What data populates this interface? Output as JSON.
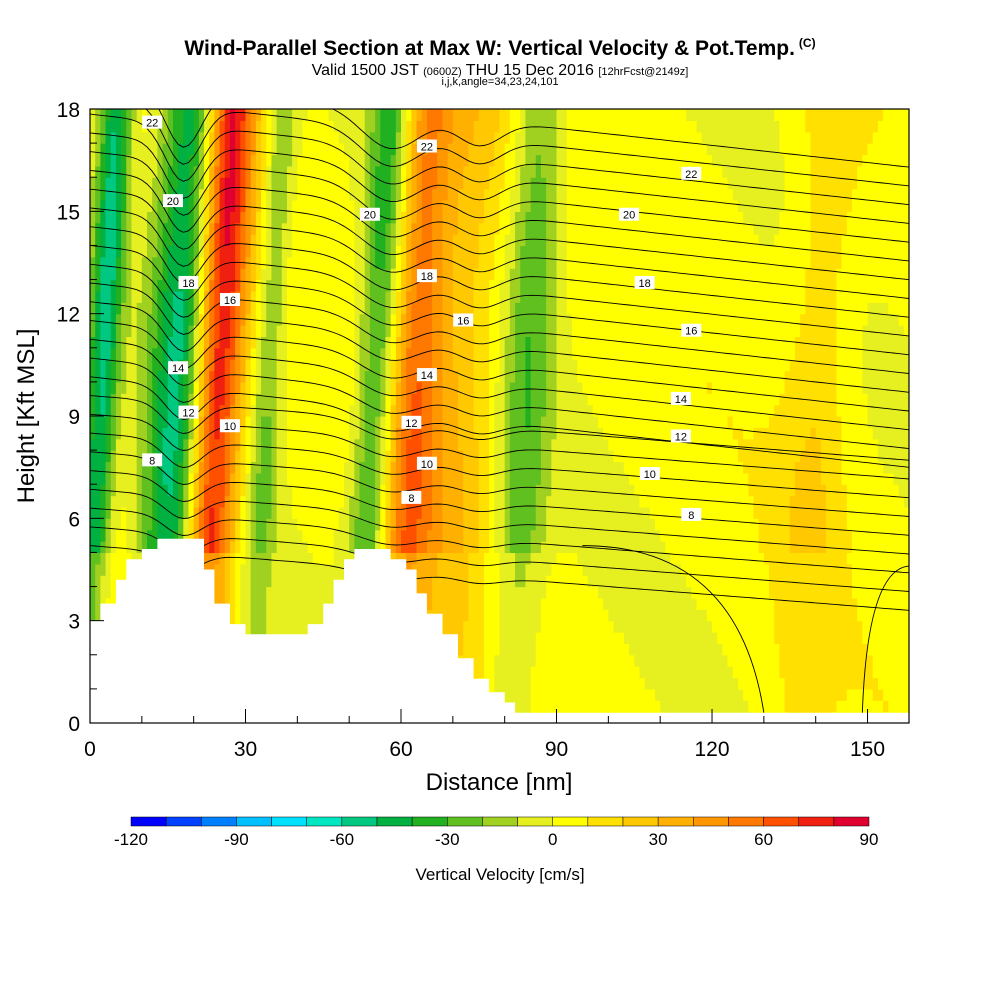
{
  "header": {
    "title": "Wind-Parallel Section at Max W: Vertical Velocity & Pot.Temp.",
    "title_units": "(C)",
    "valid_prefix": "Valid 1500 JST",
    "valid_utc": "(0600Z)",
    "valid_date": "THU 15 Dec 2016",
    "forecast": "[12hrFcst@2149z]",
    "indices": "i,j,k,angle=34,23,24,101"
  },
  "chart_data": {
    "type": "heatmap",
    "xlabel": "Distance [nm]",
    "ylabel": "Height [Kft MSL]",
    "xlim": [
      0,
      158
    ],
    "ylim": [
      0,
      18
    ],
    "x_ticks": [
      "0",
      "30",
      "60",
      "90",
      "120",
      "150"
    ],
    "y_ticks": [
      "0",
      "3",
      "6",
      "9",
      "12",
      "15",
      "18"
    ],
    "x_tick_values": [
      0,
      30,
      60,
      90,
      120,
      150
    ],
    "y_tick_values": [
      0,
      3,
      6,
      9,
      12,
      15,
      18
    ],
    "colorbar": {
      "label": "Vertical Velocity [cm/s]",
      "min": -120,
      "max": 90,
      "step": 10,
      "tick_labels": [
        "-120",
        "-90",
        "-60",
        "-30",
        "0",
        "30",
        "60",
        "90"
      ],
      "tick_values": [
        -120,
        -90,
        -60,
        -30,
        0,
        30,
        60,
        90
      ],
      "colors": [
        "#0000ff",
        "#0040ff",
        "#0080ff",
        "#00c0ff",
        "#00e0ff",
        "#00e6c0",
        "#00c880",
        "#00b040",
        "#20b020",
        "#60c020",
        "#a0d020",
        "#e6f020",
        "#ffff00",
        "#ffe000",
        "#ffc800",
        "#ffb000",
        "#ff9800",
        "#ff7800",
        "#ff5000",
        "#f02010",
        "#e00030",
        "#c00050",
        "#a00070",
        "#7a0090",
        "#5a0096"
      ]
    },
    "velocity_features": [
      {
        "x": 2,
        "width": 3,
        "value": -55
      },
      {
        "x": 17,
        "width": 6,
        "value": -60
      },
      {
        "x": 24,
        "width": 5,
        "value": 85
      },
      {
        "x": 34,
        "width": 3,
        "value": -25
      },
      {
        "x": 55,
        "width": 4,
        "value": -40
      },
      {
        "x": 62,
        "width": 5,
        "value": 45
      },
      {
        "x": 70,
        "width": 8,
        "value": 25
      },
      {
        "x": 84,
        "width": 5,
        "value": -30
      },
      {
        "x": 140,
        "width": 6,
        "value": 15
      }
    ],
    "terrain": [
      [
        0,
        3
      ],
      [
        2,
        3
      ],
      [
        2,
        3.5
      ],
      [
        5,
        3.5
      ],
      [
        5,
        4.2
      ],
      [
        7,
        4.2
      ],
      [
        7,
        4.8
      ],
      [
        10,
        4.8
      ],
      [
        10,
        5.1
      ],
      [
        13,
        5.1
      ],
      [
        13,
        5.4
      ],
      [
        22,
        5.4
      ],
      [
        22,
        4.5
      ],
      [
        24,
        4.5
      ],
      [
        24,
        3.5
      ],
      [
        27,
        3.5
      ],
      [
        27,
        2.9
      ],
      [
        30,
        2.9
      ],
      [
        30,
        2.6
      ],
      [
        42,
        2.6
      ],
      [
        42,
        2.9
      ],
      [
        45,
        2.9
      ],
      [
        45,
        3.5
      ],
      [
        47,
        3.5
      ],
      [
        47,
        4.2
      ],
      [
        49,
        4.2
      ],
      [
        49,
        4.8
      ],
      [
        51,
        4.8
      ],
      [
        51,
        5.1
      ],
      [
        58,
        5.1
      ],
      [
        58,
        4.8
      ],
      [
        61,
        4.8
      ],
      [
        61,
        4.5
      ],
      [
        63,
        4.5
      ],
      [
        63,
        3.8
      ],
      [
        65,
        3.8
      ],
      [
        65,
        3.2
      ],
      [
        68,
        3.2
      ],
      [
        68,
        2.6
      ],
      [
        71,
        2.6
      ],
      [
        71,
        1.9
      ],
      [
        74,
        1.9
      ],
      [
        74,
        1.3
      ],
      [
        77,
        1.3
      ],
      [
        77,
        0.9
      ],
      [
        80,
        0.9
      ],
      [
        80,
        0.6
      ],
      [
        82,
        0.6
      ],
      [
        82,
        0.3
      ],
      [
        158,
        0.3
      ],
      [
        158,
        0
      ]
    ],
    "theta_contours": [
      {
        "level": "8",
        "base": 7.7,
        "labels": [
          [
            12,
            7.7
          ],
          [
            62,
            6.6
          ],
          [
            116,
            6.1
          ]
        ]
      },
      {
        "level": "10",
        "base": 8.7,
        "labels": [
          [
            27,
            8.7
          ],
          [
            65,
            7.6
          ],
          [
            108,
            7.3
          ]
        ]
      },
      {
        "level": "12",
        "base": 9.1,
        "labels": [
          [
            19,
            9.1
          ],
          [
            62,
            8.8
          ],
          [
            114,
            8.4
          ]
        ]
      },
      {
        "level": "14",
        "base": 10.4,
        "labels": [
          [
            17,
            10.4
          ],
          [
            65,
            10.2
          ],
          [
            114,
            9.5
          ]
        ]
      },
      {
        "level": "16",
        "base": 12.4,
        "labels": [
          [
            27,
            12.4
          ],
          [
            72,
            11.8
          ],
          [
            116,
            11.5
          ]
        ]
      },
      {
        "level": "18",
        "base": 12.9,
        "labels": [
          [
            19,
            12.9
          ],
          [
            65,
            13.1
          ],
          [
            107,
            12.9
          ]
        ]
      },
      {
        "level": "20",
        "base": 15.3,
        "labels": [
          [
            16,
            15.3
          ],
          [
            54,
            14.9
          ],
          [
            104,
            14.9
          ]
        ]
      },
      {
        "level": "22",
        "base": 17.6,
        "labels": [
          [
            12,
            17.6
          ],
          [
            65,
            16.9
          ],
          [
            116,
            16.1
          ]
        ]
      }
    ]
  }
}
